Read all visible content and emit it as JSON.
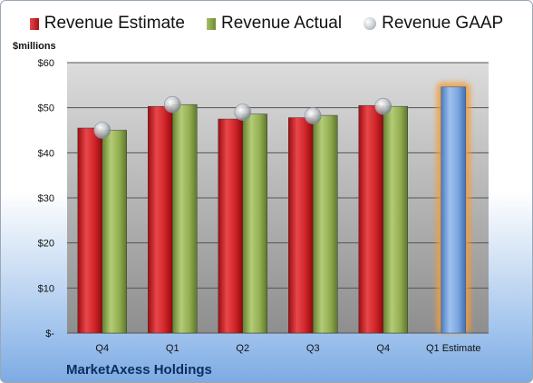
{
  "chart_data": {
    "type": "bar",
    "categories": [
      "Q4",
      "Q1",
      "Q2",
      "Q3",
      "Q4",
      "Q1 Estimate"
    ],
    "series": [
      {
        "name": "Revenue Estimate",
        "values": [
          45.5,
          50.3,
          47.5,
          47.8,
          50.5,
          null
        ],
        "color": "#c0181c"
      },
      {
        "name": "Revenue Actual",
        "values": [
          45.0,
          50.7,
          48.6,
          48.3,
          50.3,
          null
        ],
        "color": "#8aa44c"
      },
      {
        "name": "Revenue GAAP",
        "type": "scatter",
        "values": [
          45.0,
          50.7,
          49.0,
          48.2,
          50.3,
          null
        ],
        "color": "#b9bec6"
      },
      {
        "name": "",
        "values": [
          null,
          null,
          null,
          null,
          null,
          54.6
        ],
        "color": "#6f9fdc",
        "highlight": "#f39c3a"
      }
    ],
    "ylabel": "$millions",
    "ylim": [
      0,
      60
    ],
    "yticks": [
      0,
      10,
      20,
      30,
      40,
      50,
      60
    ],
    "ytick_labels": [
      "$-",
      "$10",
      "$20",
      "$30",
      "$40",
      "$50",
      "$60"
    ],
    "grid": true,
    "legend": "top",
    "title": "MarketAxess Holdings"
  }
}
